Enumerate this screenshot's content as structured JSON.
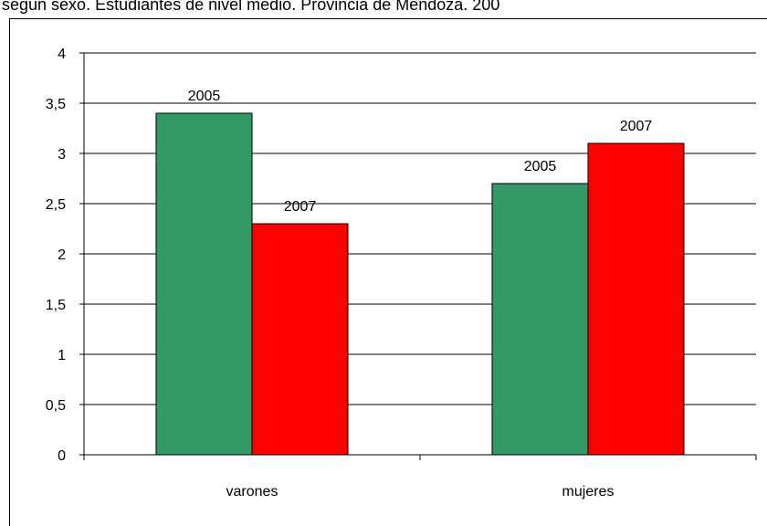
{
  "chart_data": {
    "type": "bar",
    "title": "según sexo. Estudiantes de nivel medio. Provincia de Mendoza. 200",
    "categories": [
      "varones",
      "mujeres"
    ],
    "series": [
      {
        "name": "2005",
        "color": "#339966",
        "values": [
          3.4,
          2.7
        ]
      },
      {
        "name": "2007",
        "color": "#ff0000",
        "values": [
          2.3,
          3.1
        ]
      }
    ],
    "ylim": [
      0,
      4
    ],
    "yticks": [
      0,
      {
        "value": 0.5,
        "label": "0,5"
      },
      1,
      {
        "value": 1.5,
        "label": "1,5"
      },
      2,
      {
        "value": 2.5,
        "label": "2,5"
      },
      3,
      {
        "value": 3.5,
        "label": "3,5"
      },
      4
    ],
    "grid": true
  }
}
